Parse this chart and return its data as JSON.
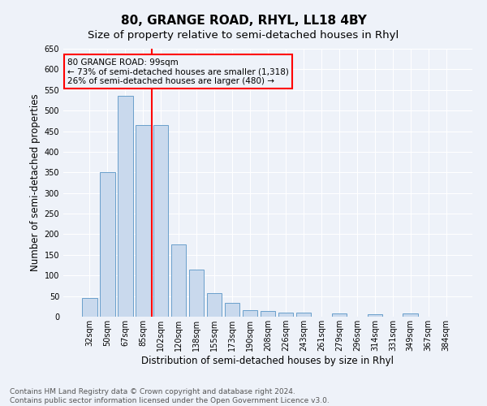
{
  "title": "80, GRANGE ROAD, RHYL, LL18 4BY",
  "subtitle": "Size of property relative to semi-detached houses in Rhyl",
  "xlabel": "Distribution of semi-detached houses by size in Rhyl",
  "ylabel": "Number of semi-detached properties",
  "categories": [
    "32sqm",
    "50sqm",
    "67sqm",
    "85sqm",
    "102sqm",
    "120sqm",
    "138sqm",
    "155sqm",
    "173sqm",
    "190sqm",
    "208sqm",
    "226sqm",
    "243sqm",
    "261sqm",
    "279sqm",
    "296sqm",
    "314sqm",
    "331sqm",
    "349sqm",
    "367sqm",
    "384sqm"
  ],
  "values": [
    45,
    350,
    535,
    465,
    465,
    175,
    115,
    58,
    33,
    16,
    14,
    10,
    10,
    0,
    8,
    0,
    5,
    0,
    7,
    0,
    0
  ],
  "bar_color": "#c9d9ed",
  "bar_edge_color": "#6a9fcb",
  "property_label": "80 GRANGE ROAD: 99sqm",
  "annotation_line1": "← 73% of semi-detached houses are smaller (1,318)",
  "annotation_line2": "26% of semi-detached houses are larger (480) →",
  "ylim": [
    0,
    650
  ],
  "footer_line1": "Contains HM Land Registry data © Crown copyright and database right 2024.",
  "footer_line2": "Contains public sector information licensed under the Open Government Licence v3.0.",
  "bg_color": "#eef2f9",
  "grid_color": "#ffffff",
  "title_fontsize": 11,
  "subtitle_fontsize": 9.5,
  "axis_label_fontsize": 8.5,
  "tick_fontsize": 7,
  "footer_fontsize": 6.5,
  "annotation_fontsize": 7.5
}
